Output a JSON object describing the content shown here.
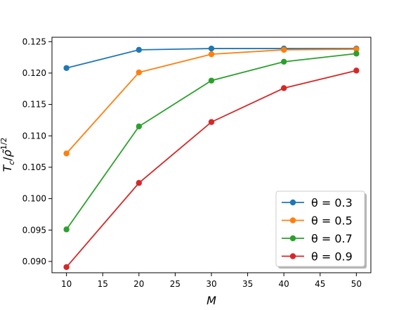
{
  "chart_data": {
    "type": "line",
    "x": [
      10,
      20,
      30,
      40,
      50
    ],
    "xlabel": "M",
    "ylabel": "T_c/ρ̃^1/2",
    "xlim": [
      8,
      52
    ],
    "ylim": [
      0.0882,
      0.1257
    ],
    "xticks": [
      10,
      15,
      20,
      25,
      30,
      35,
      40,
      45,
      50
    ],
    "yticks": [
      0.09,
      0.095,
      0.1,
      0.105,
      0.11,
      0.115,
      0.12,
      0.125
    ],
    "ytick_labels": [
      "0.090",
      "0.095",
      "0.100",
      "0.105",
      "0.110",
      "0.115",
      "0.120",
      "0.125"
    ],
    "grid": false,
    "legend_position": "lower-right",
    "series": [
      {
        "name": "θ = 0.3",
        "color": "#1f77b4",
        "values": [
          0.1208,
          0.1237,
          0.1239,
          0.1239,
          0.1239
        ]
      },
      {
        "name": "θ = 0.5",
        "color": "#ff7f0e",
        "values": [
          0.1072,
          0.1201,
          0.123,
          0.1237,
          0.1238
        ]
      },
      {
        "name": "θ = 0.7",
        "color": "#2ca02c",
        "values": [
          0.0951,
          0.1115,
          0.1188,
          0.1218,
          0.1231
        ]
      },
      {
        "name": "θ = 0.9",
        "color": "#d62728",
        "values": [
          0.0891,
          0.1025,
          0.1122,
          0.1176,
          0.1204
        ]
      }
    ]
  }
}
